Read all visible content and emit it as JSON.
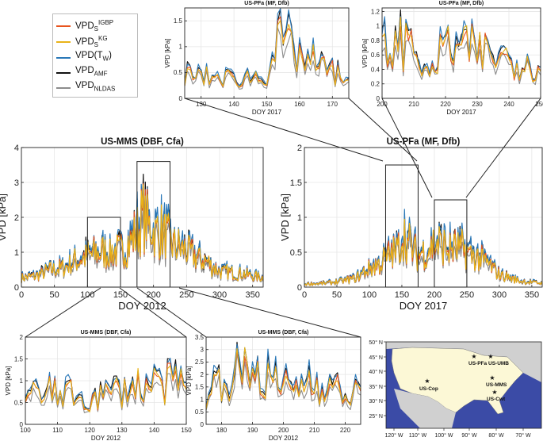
{
  "legend": {
    "items": [
      {
        "base": "VPD",
        "sub": "S",
        "sup": "IGBP",
        "color": "#e8541e"
      },
      {
        "base": "VPD",
        "sub": "S",
        "sup": "KG",
        "color": "#e9b319"
      },
      {
        "base": "VPD(T",
        "sub": "W",
        "tail": ")",
        "color": "#2a78b8"
      },
      {
        "base": "VPD",
        "sub": "AMF",
        "color": "#111111"
      },
      {
        "base": "VPD",
        "sub": "NLDAS",
        "color": "#8c8c8c"
      }
    ]
  },
  "map": {
    "sites": [
      "US-PFa",
      "US-UMB",
      "US-MMS",
      "US-Cop",
      "US-Cwt"
    ],
    "lat_labels": [
      "50° N",
      "45° N",
      "40° N",
      "35° N",
      "30° N",
      "25° N"
    ],
    "lon_labels": [
      "120° W",
      "110° W",
      "100° W",
      "90° W",
      "80° W",
      "70° W"
    ],
    "colors": {
      "ocean": "#3b4ba6",
      "land": "#fcf8d6",
      "other": "#d0d0d0"
    }
  },
  "chart_data": [
    {
      "id": "mms_main",
      "type": "line",
      "title": "US-MMS (DBF, Cfa)",
      "xlabel": "DOY 2012",
      "ylabel": "VPD [kPa]",
      "xlim": [
        0,
        366
      ],
      "ylim": [
        0,
        4
      ],
      "xticks": [
        0,
        50,
        100,
        150,
        200,
        250,
        300,
        350
      ],
      "yticks": [
        0,
        1,
        2,
        3,
        4
      ],
      "envelope": [
        [
          0,
          0.3
        ],
        [
          20,
          0.35
        ],
        [
          40,
          0.5
        ],
        [
          60,
          0.6
        ],
        [
          80,
          0.8
        ],
        [
          100,
          1.0
        ],
        [
          115,
          1.1
        ],
        [
          130,
          1.1
        ],
        [
          150,
          1.1
        ],
        [
          160,
          1.3
        ],
        [
          175,
          1.8
        ],
        [
          185,
          2.2
        ],
        [
          200,
          1.8
        ],
        [
          215,
          1.7
        ],
        [
          230,
          1.3
        ],
        [
          245,
          1.2
        ],
        [
          260,
          1.0
        ],
        [
          280,
          0.8
        ],
        [
          300,
          0.5
        ],
        [
          320,
          0.45
        ],
        [
          340,
          0.4
        ],
        [
          366,
          0.3
        ]
      ],
      "zoom_boxes": [
        {
          "x": [
            100,
            150
          ],
          "y": [
            0,
            2
          ]
        },
        {
          "x": [
            175,
            225
          ],
          "y": [
            0,
            3.6
          ]
        }
      ]
    },
    {
      "id": "pfa_main",
      "type": "line",
      "title": "US-PFa (MF, Dfb)",
      "xlabel": "DOY 2017",
      "ylabel": "VPD [kPa]",
      "xlim": [
        0,
        366
      ],
      "ylim": [
        0,
        2
      ],
      "xticks": [
        0,
        50,
        100,
        150,
        200,
        250,
        300,
        350
      ],
      "yticks": [
        0,
        0.5,
        1,
        1.5,
        2
      ],
      "envelope": [
        [
          0,
          0.05
        ],
        [
          30,
          0.06
        ],
        [
          60,
          0.1
        ],
        [
          80,
          0.15
        ],
        [
          100,
          0.3
        ],
        [
          120,
          0.4
        ],
        [
          130,
          0.5
        ],
        [
          145,
          0.6
        ],
        [
          152,
          0.9
        ],
        [
          160,
          0.7
        ],
        [
          175,
          0.5
        ],
        [
          190,
          0.6
        ],
        [
          205,
          0.7
        ],
        [
          220,
          0.6
        ],
        [
          240,
          0.6
        ],
        [
          260,
          0.5
        ],
        [
          280,
          0.4
        ],
        [
          300,
          0.2
        ],
        [
          330,
          0.1
        ],
        [
          366,
          0.06
        ]
      ],
      "zoom_boxes": [
        {
          "x": [
            125,
            175
          ],
          "y": [
            0,
            1.75
          ]
        },
        {
          "x": [
            200,
            250
          ],
          "y": [
            0,
            1.25
          ]
        }
      ]
    },
    {
      "id": "pfa_z1",
      "type": "line",
      "title": "US-PFa (MF, Dfb)",
      "xlabel": "DOY 2017",
      "ylabel": "VPD [kPa]",
      "xlim": [
        125,
        175
      ],
      "ylim": [
        0,
        1.75
      ],
      "xticks": [
        130,
        140,
        150,
        160,
        170
      ],
      "yticks": [
        0,
        0.5,
        1,
        1.5
      ],
      "envelope": [
        [
          125,
          0.5
        ],
        [
          140,
          0.4
        ],
        [
          150,
          0.5
        ],
        [
          152,
          1.0
        ],
        [
          154,
          1.2
        ],
        [
          158,
          1.0
        ],
        [
          165,
          0.7
        ],
        [
          175,
          0.4
        ]
      ]
    },
    {
      "id": "pfa_z2",
      "type": "line",
      "title": "US-PFa (MF, Dfb)",
      "xlabel": "DOY 2017",
      "ylabel": "VPD [kPa]",
      "xlim": [
        200,
        250
      ],
      "ylim": [
        0,
        1.25
      ],
      "xticks": [
        200,
        210,
        220,
        230,
        240,
        250
      ],
      "yticks": [
        0,
        0.2,
        0.4,
        0.6,
        0.8,
        1,
        1.2
      ],
      "envelope": [
        [
          200,
          0.7
        ],
        [
          205,
          0.8
        ],
        [
          210,
          0.9
        ],
        [
          214,
          0.3
        ],
        [
          220,
          0.8
        ],
        [
          230,
          0.7
        ],
        [
          240,
          0.6
        ],
        [
          250,
          0.5
        ]
      ]
    },
    {
      "id": "mms_z1",
      "type": "line",
      "title": "US-MMS (DBF, Cfa)",
      "xlabel": "DOY 2012",
      "ylabel": "VPD [kPa]",
      "xlim": [
        100,
        150
      ],
      "ylim": [
        0,
        2
      ],
      "xticks": [
        100,
        110,
        120,
        130,
        140,
        150
      ],
      "yticks": [
        0,
        0.5,
        1,
        1.5,
        2
      ],
      "envelope": [
        [
          100,
          0.7
        ],
        [
          110,
          0.8
        ],
        [
          120,
          0.6
        ],
        [
          130,
          0.9
        ],
        [
          140,
          1.0
        ],
        [
          150,
          1.0
        ]
      ]
    },
    {
      "id": "mms_z2",
      "type": "line",
      "title": "US-MMS (DBF, Cfa)",
      "xlabel": "DOY 2012",
      "ylabel": "VPD [kPa]",
      "xlim": [
        175,
        225
      ],
      "ylim": [
        0,
        3.5
      ],
      "xticks": [
        180,
        190,
        200,
        210,
        220
      ],
      "yticks": [
        0,
        0.5,
        1,
        1.5,
        2,
        2.5,
        3,
        3.5
      ],
      "envelope": [
        [
          175,
          1.4
        ],
        [
          183,
          2.2
        ],
        [
          190,
          2.4
        ],
        [
          200,
          1.6
        ],
        [
          210,
          2.0
        ],
        [
          220,
          1.3
        ],
        [
          225,
          1.4
        ]
      ]
    }
  ]
}
